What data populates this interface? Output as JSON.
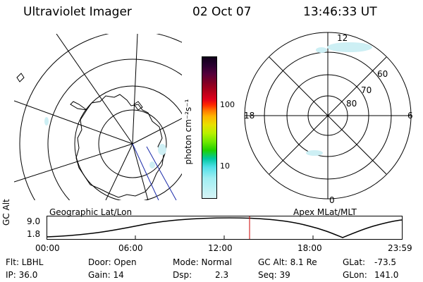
{
  "header": {
    "title": "Ultraviolet Imager",
    "date": "02 Oct 07",
    "time": "13:46:33 UT"
  },
  "colorbar": {
    "unit_label": "photon cm⁻²s⁻¹",
    "tick_100": "100",
    "tick_10": "10",
    "colors": [
      "#10001a",
      "#2a0030",
      "#55003a",
      "#800024",
      "#b0001a",
      "#e0001a",
      "#ff2a00",
      "#ff7a00",
      "#ffb400",
      "#e8e000",
      "#b8f000",
      "#70e800",
      "#20d000",
      "#00c8a0",
      "#50e0e8",
      "#a0eef2",
      "#d6f4f6"
    ]
  },
  "left_map": {
    "label": "Geographic Lat/Lon"
  },
  "right_map": {
    "label": "Apex MLat/MLT",
    "mlt_labels": {
      "top": "12",
      "left": "18",
      "right": "6",
      "bottom": "0"
    },
    "lat_labels": [
      "60",
      "70",
      "80"
    ]
  },
  "altitude_plot": {
    "ylabel": "GC Alt",
    "ytick_top": "9.0",
    "ytick_bottom": "1.8",
    "xticks": [
      "00:00",
      "06:00",
      "12:00",
      "18:00",
      "23:59"
    ],
    "current_time_marker": "13:46:33"
  },
  "footer": {
    "filter": "Flt: LBHL",
    "ip": "IP: 36.0",
    "door": "Door: Open",
    "gain": "Gain: 14",
    "mode": "Mode: Normal",
    "dsp_label": "Dsp:",
    "dsp_value": "2.3",
    "gc_alt": "GC Alt: 8.1 Re",
    "seq": "Seq: 39",
    "glat_label": "GLat:",
    "glat_value": "-73.5",
    "glon_label": "GLon:",
    "glon_value": "141.0"
  }
}
